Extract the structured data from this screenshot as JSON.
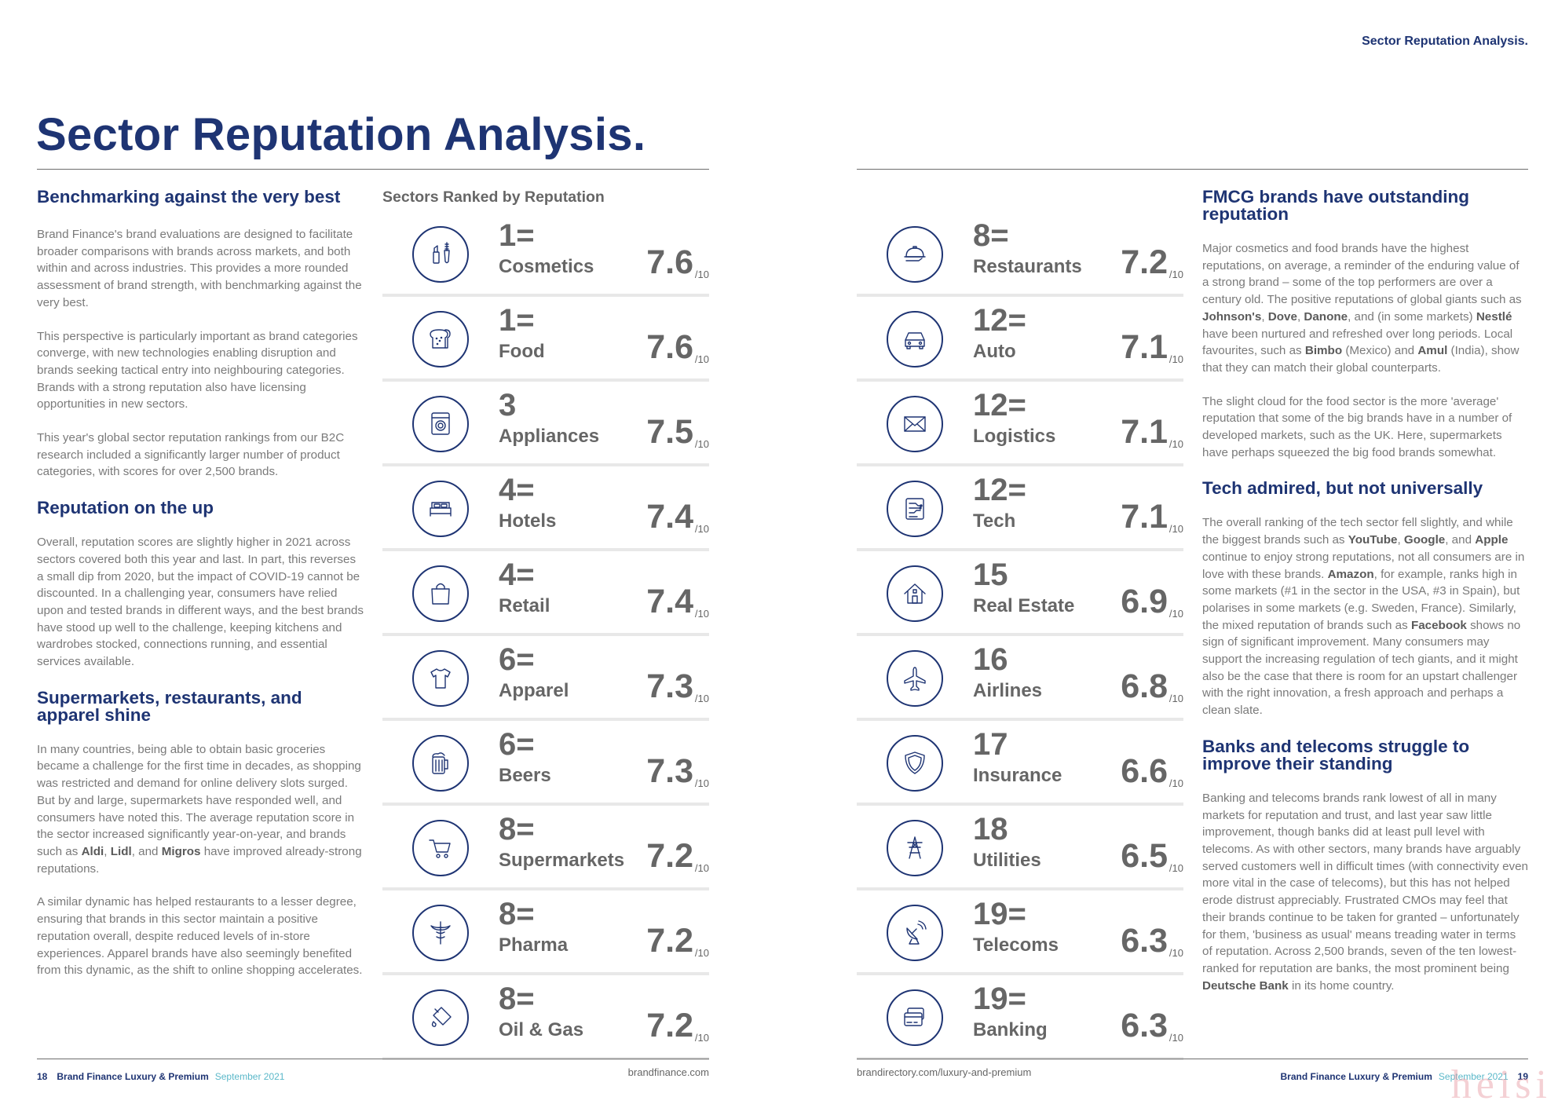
{
  "running_head": "Sector Reputation Analysis.",
  "page_title": "Sector Reputation Analysis.",
  "colors": {
    "navy": "#1e3473",
    "body_text": "#7a7a7a",
    "score_text": "#666666",
    "date_accent": "#5bb8c9"
  },
  "left_column": [
    {
      "heading": "Benchmarking against the very best",
      "paragraphs": [
        [
          {
            "t": "Brand Finance's brand evaluations are designed to facilitate broader comparisons with brands across markets, and both within and across industries. This provides a more rounded assessment of brand strength, with benchmarking against the very best."
          }
        ],
        [
          {
            "t": "This perspective is particularly important as brand categories converge, with new technologies enabling disruption and brands seeking tactical entry into neighbouring categories. Brands with a strong reputation also have licensing opportunities in new sectors."
          }
        ],
        [
          {
            "t": "This year's global sector reputation rankings from our B2C research included a significantly larger number of product categories, with scores for over 2,500 brands."
          }
        ]
      ]
    },
    {
      "heading": "Reputation on the up",
      "paragraphs": [
        [
          {
            "t": "Overall, reputation scores are slightly higher in 2021 across sectors covered both this year and last. In part, this reverses a small dip from 2020, but the impact of COVID-19 cannot be discounted. In a challenging year, consumers have relied upon and tested brands in different ways, and the best brands have stood up well to the challenge, keeping kitchens and wardrobes stocked, connections running, and essential services available."
          }
        ]
      ]
    },
    {
      "heading": "Supermarkets, restaurants, and apparel shine",
      "paragraphs": [
        [
          {
            "t": "In many countries, being able to obtain basic groceries became a challenge for the first time in decades, as shopping was restricted and demand for online delivery slots surged. But by and large, supermarkets have responded well, and consumers have noted this. The average reputation score in the sector increased significantly year-on-year, and brands such as "
          },
          {
            "t": "Aldi",
            "b": true
          },
          {
            "t": ", "
          },
          {
            "t": "Lidl",
            "b": true
          },
          {
            "t": ", and "
          },
          {
            "t": "Migros",
            "b": true
          },
          {
            "t": " have improved already-strong reputations."
          }
        ],
        [
          {
            "t": "A similar dynamic has helped restaurants to a lesser degree, ensuring that brands in this sector maintain a positive reputation overall, despite reduced levels of in-store experiences. Apparel brands have also seemingly benefited from this dynamic, as the shift to online shopping accelerates."
          }
        ]
      ]
    }
  ],
  "right_column": [
    {
      "heading": "FMCG brands have outstanding reputation",
      "paragraphs": [
        [
          {
            "t": "Major cosmetics and food brands have the highest reputations, on average, a reminder of the enduring value of a strong brand – some of the top performers are over a century old. The positive reputations of global giants such as "
          },
          {
            "t": "Johnson's",
            "b": true
          },
          {
            "t": ", "
          },
          {
            "t": "Dove",
            "b": true
          },
          {
            "t": ", "
          },
          {
            "t": "Danone",
            "b": true
          },
          {
            "t": ", and (in some markets) "
          },
          {
            "t": "Nestlé",
            "b": true
          },
          {
            "t": " have been nurtured and refreshed over long periods. Local favourites, such as "
          },
          {
            "t": "Bimbo",
            "b": true
          },
          {
            "t": " (Mexico) and "
          },
          {
            "t": "Amul",
            "b": true
          },
          {
            "t": " (India), show that they can match their global counterparts."
          }
        ],
        [
          {
            "t": "The slight cloud for the food sector is the more 'average' reputation that some of the big brands have in a number of developed markets, such as the UK. Here, supermarkets have perhaps squeezed the big food brands somewhat."
          }
        ]
      ]
    },
    {
      "heading": "Tech admired, but not universally",
      "paragraphs": [
        [
          {
            "t": "The overall ranking of the tech sector fell slightly, and while the biggest brands such as "
          },
          {
            "t": "YouTube",
            "b": true
          },
          {
            "t": ", "
          },
          {
            "t": "Google",
            "b": true
          },
          {
            "t": ", and "
          },
          {
            "t": "Apple",
            "b": true
          },
          {
            "t": " continue to enjoy strong reputations, not all consumers are in love with these brands. "
          },
          {
            "t": "Amazon",
            "b": true
          },
          {
            "t": ", for example, ranks high in some markets (#1 in the sector in the USA, #3 in Spain), but polarises in some markets (e.g. Sweden, France). Similarly, the mixed reputation of brands such as "
          },
          {
            "t": "Facebook",
            "b": true
          },
          {
            "t": " shows no sign of significant improvement. Many consumers may support the increasing regulation of tech giants, and it might also be the case that there is room for an upstart challenger with the right innovation, a fresh approach and perhaps a clean slate."
          }
        ]
      ]
    },
    {
      "heading": "Banks and telecoms struggle to improve their standing",
      "paragraphs": [
        [
          {
            "t": "Banking and telecoms brands rank lowest of all in many markets for reputation and trust, and last year saw little improvement, though banks did at least pull level with telecoms. As with other sectors, many brands have arguably served customers well in difficult times (with connectivity even more vital in the case of telecoms), but this has not helped erode distrust appreciably. Frustrated CMOs may feel that their brands continue to be taken for granted – unfortunately for them, 'business as usual' means treading water in terms of reputation. Across 2,500 brands, seven of the ten lowest-ranked for reputation are banks, the most prominent being "
          },
          {
            "t": "Deutsche Bank",
            "b": true
          },
          {
            "t": " in its home country."
          }
        ]
      ]
    }
  ],
  "rankings": {
    "heading": "Sectors Ranked by Reputation",
    "out_of": "/10",
    "left": [
      {
        "rank": "1=",
        "sector": "Cosmetics",
        "score": "7.6",
        "icon": "cosmetics-icon"
      },
      {
        "rank": "1=",
        "sector": "Food",
        "score": "7.6",
        "icon": "bread-icon"
      },
      {
        "rank": "3",
        "sector": "Appliances",
        "score": "7.5",
        "icon": "washing-machine-icon"
      },
      {
        "rank": "4=",
        "sector": "Hotels",
        "score": "7.4",
        "icon": "bed-icon"
      },
      {
        "rank": "4=",
        "sector": "Retail",
        "score": "7.4",
        "icon": "shopping-bag-icon"
      },
      {
        "rank": "6=",
        "sector": "Apparel",
        "score": "7.3",
        "icon": "t-shirt-icon"
      },
      {
        "rank": "6=",
        "sector": "Beers",
        "score": "7.3",
        "icon": "beer-mug-icon"
      },
      {
        "rank": "8=",
        "sector": "Supermarkets",
        "score": "7.2",
        "icon": "shopping-cart-icon"
      },
      {
        "rank": "8=",
        "sector": "Pharma",
        "score": "7.2",
        "icon": "caduceus-icon"
      },
      {
        "rank": "8=",
        "sector": "Oil & Gas",
        "score": "7.2",
        "icon": "oil-can-icon"
      }
    ],
    "right": [
      {
        "rank": "8=",
        "sector": "Restaurants",
        "score": "7.2",
        "icon": "cloche-icon"
      },
      {
        "rank": "12=",
        "sector": "Auto",
        "score": "7.1",
        "icon": "car-icon"
      },
      {
        "rank": "12=",
        "sector": "Logistics",
        "score": "7.1",
        "icon": "envelope-icon"
      },
      {
        "rank": "12=",
        "sector": "Tech",
        "score": "7.1",
        "icon": "circuit-icon"
      },
      {
        "rank": "15",
        "sector": "Real Estate",
        "score": "6.9",
        "icon": "house-icon"
      },
      {
        "rank": "16",
        "sector": "Airlines",
        "score": "6.8",
        "icon": "airplane-icon"
      },
      {
        "rank": "17",
        "sector": "Insurance",
        "score": "6.6",
        "icon": "shield-icon"
      },
      {
        "rank": "18",
        "sector": "Utilities",
        "score": "6.5",
        "icon": "pylon-icon"
      },
      {
        "rank": "19=",
        "sector": "Telecoms",
        "score": "6.3",
        "icon": "satellite-dish-icon"
      },
      {
        "rank": "19=",
        "sector": "Banking",
        "score": "6.3",
        "icon": "credit-card-icon"
      }
    ]
  },
  "footer": {
    "left_page_number": "18",
    "right_page_number": "19",
    "publication": "Brand Finance Luxury & Premium",
    "date": "September 2021",
    "left_url": "brandfinance.com",
    "right_url": "brandirectory.com/luxury-and-premium"
  },
  "watermark": "heisi"
}
